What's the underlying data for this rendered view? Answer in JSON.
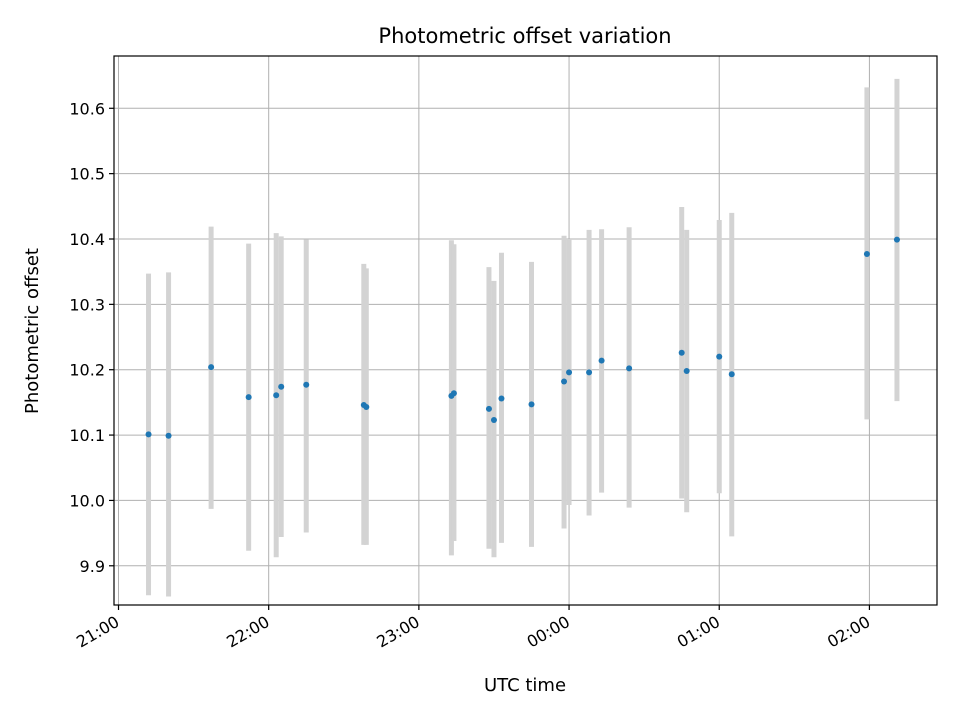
{
  "chart_data": {
    "type": "scatter",
    "title": "Photometric offset variation",
    "xlabel": "UTC time",
    "ylabel": "Photometric offset",
    "x_axis_kind": "time",
    "x_tick_labels": [
      "21:00",
      "22:00",
      "23:00",
      "00:00",
      "01:00",
      "02:00"
    ],
    "x_tick_hours": [
      21,
      22,
      23,
      24,
      25,
      26
    ],
    "xlim_hours": [
      20.97,
      26.45
    ],
    "ylim": [
      9.84,
      10.68
    ],
    "y_ticks": [
      9.9,
      10.0,
      10.1,
      10.2,
      10.3,
      10.4,
      10.5,
      10.6
    ],
    "y_tick_labels": [
      "9.9",
      "10.0",
      "10.1",
      "10.2",
      "10.3",
      "10.4",
      "10.5",
      "10.6"
    ],
    "grid": true,
    "colors": {
      "points": "#1f77b4",
      "error_bars": "#d3d3d3",
      "grid": "#b0b0b0"
    },
    "points": [
      {
        "time": "21:12",
        "y": 10.101,
        "lo": 9.855,
        "hi": 10.347
      },
      {
        "time": "21:20",
        "y": 10.099,
        "lo": 9.853,
        "hi": 10.349
      },
      {
        "time": "21:37",
        "y": 10.204,
        "lo": 9.987,
        "hi": 10.419
      },
      {
        "time": "21:52",
        "y": 10.158,
        "lo": 9.923,
        "hi": 10.393
      },
      {
        "time": "22:03",
        "y": 10.161,
        "lo": 9.913,
        "hi": 10.409
      },
      {
        "time": "22:05",
        "y": 10.174,
        "lo": 9.944,
        "hi": 10.404
      },
      {
        "time": "22:15",
        "y": 10.177,
        "lo": 9.951,
        "hi": 10.399
      },
      {
        "time": "22:38",
        "y": 10.146,
        "lo": 9.932,
        "hi": 10.362
      },
      {
        "time": "22:39",
        "y": 10.143,
        "lo": 9.932,
        "hi": 10.355
      },
      {
        "time": "23:13",
        "y": 10.16,
        "lo": 9.916,
        "hi": 10.398
      },
      {
        "time": "23:14",
        "y": 10.164,
        "lo": 9.938,
        "hi": 10.392
      },
      {
        "time": "23:28",
        "y": 10.14,
        "lo": 9.926,
        "hi": 10.357
      },
      {
        "time": "23:30",
        "y": 10.123,
        "lo": 9.913,
        "hi": 10.336
      },
      {
        "time": "23:33",
        "y": 10.156,
        "lo": 9.935,
        "hi": 10.379
      },
      {
        "time": "23:45",
        "y": 10.147,
        "lo": 9.929,
        "hi": 10.365
      },
      {
        "time": "23:58",
        "y": 10.182,
        "lo": 9.957,
        "hi": 10.405
      },
      {
        "time": "00:00",
        "y": 10.196,
        "lo": 9.993,
        "hi": 10.4
      },
      {
        "time": "00:08",
        "y": 10.196,
        "lo": 9.977,
        "hi": 10.414
      },
      {
        "time": "00:13",
        "y": 10.214,
        "lo": 10.012,
        "hi": 10.415
      },
      {
        "time": "00:24",
        "y": 10.202,
        "lo": 9.989,
        "hi": 10.418
      },
      {
        "time": "00:45",
        "y": 10.226,
        "lo": 10.003,
        "hi": 10.449
      },
      {
        "time": "00:47",
        "y": 10.198,
        "lo": 9.982,
        "hi": 10.414
      },
      {
        "time": "01:00",
        "y": 10.22,
        "lo": 10.011,
        "hi": 10.429
      },
      {
        "time": "01:05",
        "y": 10.193,
        "lo": 9.945,
        "hi": 10.44
      },
      {
        "time": "01:59",
        "y": 10.377,
        "lo": 10.124,
        "hi": 10.632
      },
      {
        "time": "02:11",
        "y": 10.399,
        "lo": 10.152,
        "hi": 10.645
      }
    ]
  }
}
